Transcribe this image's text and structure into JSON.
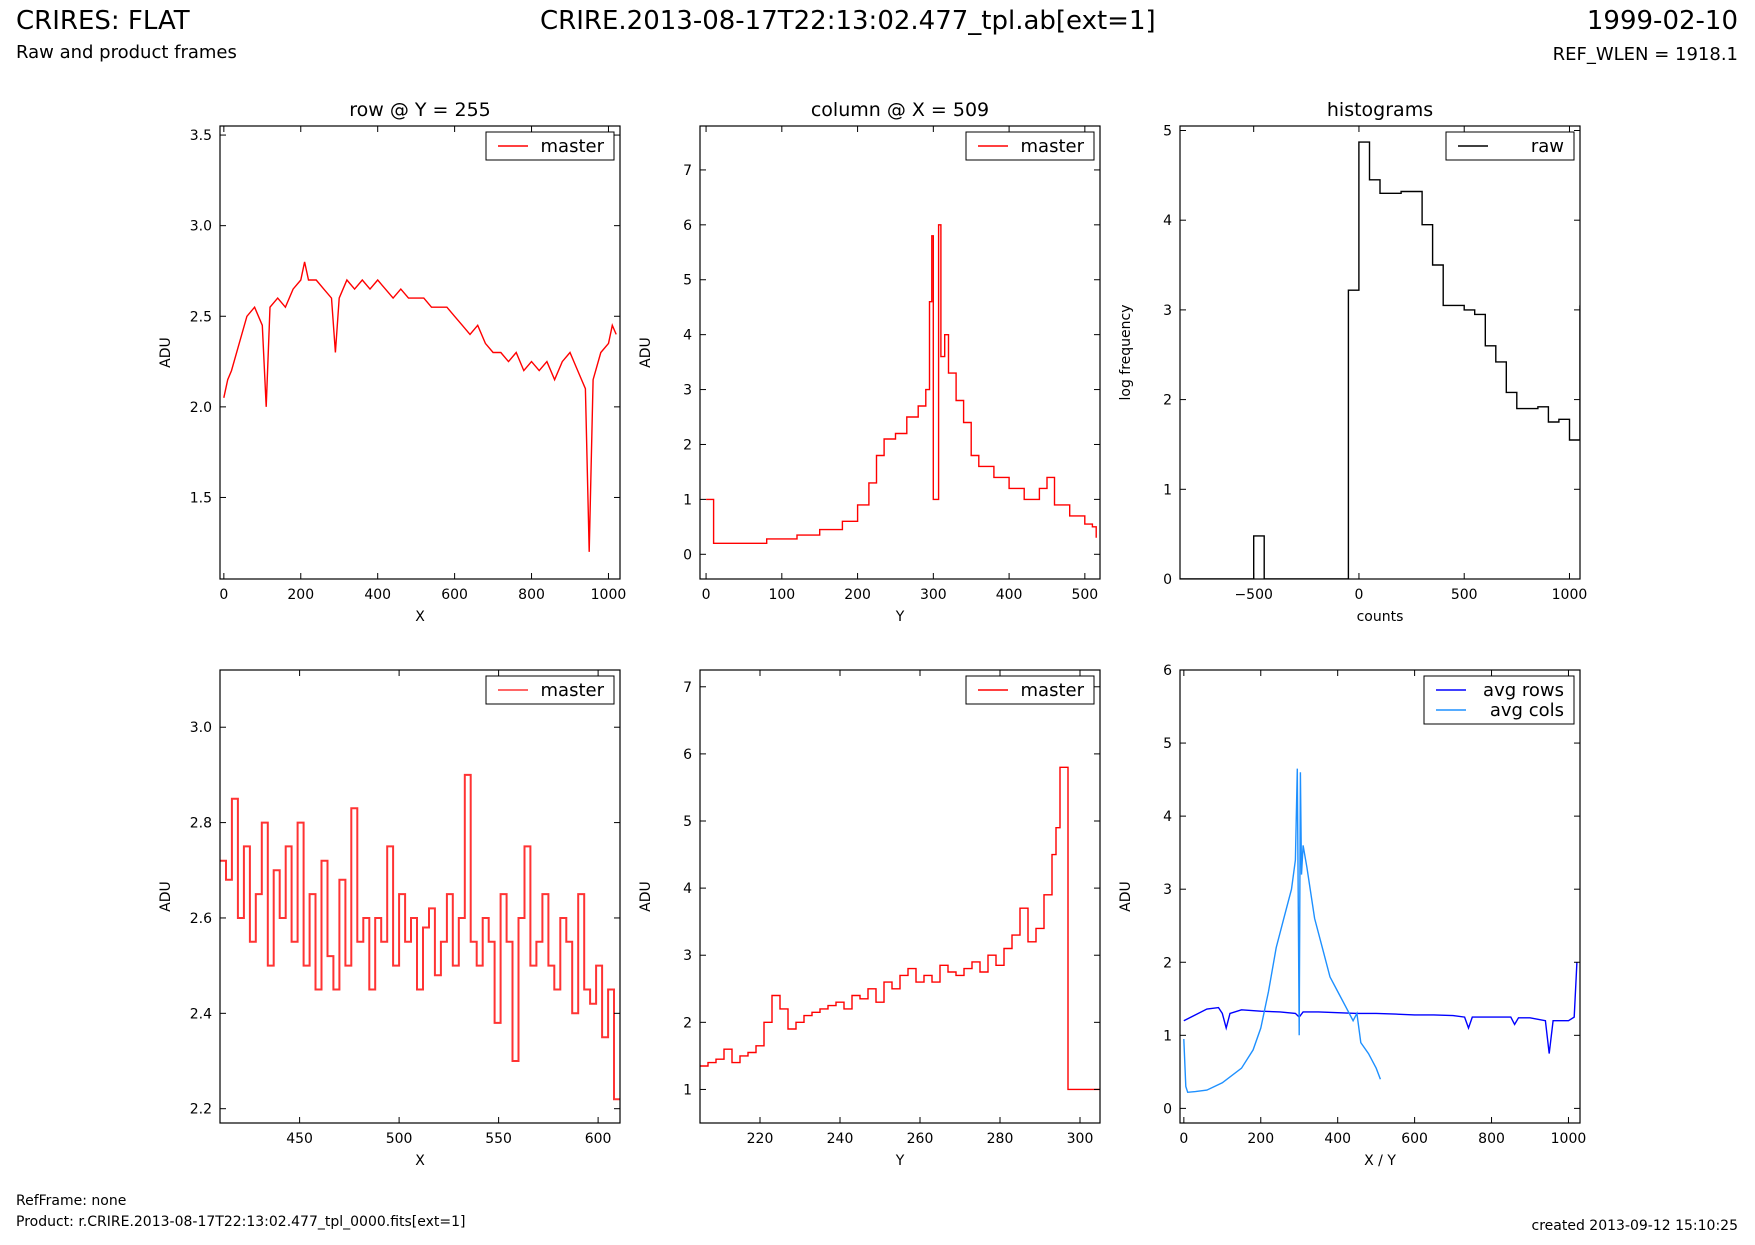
{
  "header": {
    "title": "CRIRES: FLAT",
    "subtitle": "Raw and product frames",
    "center_title": "CRIRE.2013-08-17T22:13:02.477_tpl.ab[ext=1]",
    "date": "1999-02-10",
    "ref_wlen": "REF_WLEN = 1918.1"
  },
  "footer": {
    "refframe": "RefFrame: none",
    "product": "Product: r.CRIRE.2013-08-17T22:13:02.477_tpl_0000.fits[ext=1]",
    "created": "created 2013-09-12 15:10:25"
  },
  "colors": {
    "master": "#ff0000",
    "master_zoom": "#ff3333",
    "raw": "#000000",
    "avg_rows": "#0000ff",
    "avg_cols": "#1e90ff"
  },
  "chart_data": [
    {
      "id": "row",
      "type": "line",
      "title": "row @ Y = 255",
      "xlabel": "X",
      "ylabel": "ADU",
      "xlim": [
        -10,
        1030
      ],
      "ylim": [
        1.05,
        3.55
      ],
      "xticks": [
        0,
        200,
        400,
        600,
        800,
        1000
      ],
      "yticks": [
        1.5,
        2.0,
        2.5,
        3.0,
        3.5
      ],
      "xtick_labels": [
        "0",
        "200",
        "400",
        "600",
        "800",
        "1000"
      ],
      "ytick_labels": [
        "1.5",
        "2.0",
        "2.5",
        "3.0",
        "3.5"
      ],
      "legend": [
        "master"
      ],
      "series": [
        {
          "name": "master",
          "color": "#ff0000",
          "step": false,
          "x": [
            0,
            10,
            20,
            40,
            60,
            80,
            100,
            110,
            120,
            140,
            160,
            180,
            200,
            210,
            220,
            240,
            260,
            280,
            290,
            300,
            320,
            340,
            360,
            380,
            400,
            420,
            440,
            460,
            480,
            500,
            520,
            540,
            560,
            580,
            600,
            620,
            640,
            660,
            680,
            700,
            720,
            740,
            760,
            780,
            800,
            820,
            840,
            860,
            880,
            900,
            920,
            940,
            950,
            960,
            980,
            1000,
            1010,
            1020
          ],
          "y": [
            2.05,
            2.15,
            2.2,
            2.35,
            2.5,
            2.55,
            2.45,
            2.0,
            2.55,
            2.6,
            2.55,
            2.65,
            2.7,
            2.8,
            2.7,
            2.7,
            2.65,
            2.6,
            2.3,
            2.6,
            2.7,
            2.65,
            2.7,
            2.65,
            2.7,
            2.65,
            2.6,
            2.65,
            2.6,
            2.6,
            2.6,
            2.55,
            2.55,
            2.55,
            2.5,
            2.45,
            2.4,
            2.45,
            2.35,
            2.3,
            2.3,
            2.25,
            2.3,
            2.2,
            2.25,
            2.2,
            2.25,
            2.15,
            2.25,
            2.3,
            2.2,
            2.1,
            1.2,
            2.15,
            2.3,
            2.35,
            2.45,
            2.4
          ]
        }
      ]
    },
    {
      "id": "column",
      "type": "line",
      "title": "column @ X = 509",
      "xlabel": "Y",
      "ylabel": "ADU",
      "xlim": [
        -8,
        520
      ],
      "ylim": [
        -0.45,
        7.8
      ],
      "xticks": [
        0,
        100,
        200,
        300,
        400,
        500
      ],
      "yticks": [
        0,
        1,
        2,
        3,
        4,
        5,
        6,
        7
      ],
      "xtick_labels": [
        "0",
        "100",
        "200",
        "300",
        "400",
        "500"
      ],
      "ytick_labels": [
        "0",
        "1",
        "2",
        "3",
        "4",
        "5",
        "6",
        "7"
      ],
      "legend": [
        "master"
      ],
      "series": [
        {
          "name": "master",
          "color": "#ff0000",
          "step": true,
          "x": [
            0,
            8,
            10,
            40,
            80,
            120,
            150,
            180,
            200,
            215,
            225,
            235,
            250,
            265,
            280,
            290,
            295,
            298,
            300,
            305,
            307,
            310,
            315,
            320,
            330,
            340,
            350,
            360,
            380,
            400,
            420,
            440,
            450,
            460,
            480,
            500,
            510,
            515
          ],
          "y": [
            1.0,
            1.0,
            0.2,
            0.2,
            0.28,
            0.35,
            0.45,
            0.6,
            0.9,
            1.3,
            1.8,
            2.1,
            2.2,
            2.5,
            2.7,
            3.0,
            4.6,
            5.8,
            1.0,
            1.0,
            6.0,
            3.6,
            4.0,
            3.3,
            2.8,
            2.4,
            1.8,
            1.6,
            1.4,
            1.2,
            1.0,
            1.2,
            1.4,
            0.9,
            0.7,
            0.55,
            0.5,
            0.3
          ]
        }
      ]
    },
    {
      "id": "hist",
      "type": "line",
      "title": "histograms",
      "xlabel": "counts",
      "ylabel": "log frequency",
      "xlim": [
        -850,
        1050
      ],
      "ylim": [
        0,
        5.05
      ],
      "xticks": [
        -500,
        0,
        500,
        1000
      ],
      "yticks": [
        0,
        1,
        2,
        3,
        4,
        5
      ],
      "xtick_labels": [
        "−500",
        "0",
        "500",
        "1000"
      ],
      "ytick_labels": [
        "0",
        "1",
        "2",
        "3",
        "4",
        "5"
      ],
      "legend": [
        "raw"
      ],
      "series": [
        {
          "name": "raw",
          "color": "#000000",
          "step": true,
          "x": [
            -850,
            -550,
            -500,
            -450,
            -100,
            -50,
            0,
            50,
            100,
            150,
            200,
            250,
            300,
            350,
            400,
            450,
            500,
            550,
            600,
            650,
            700,
            750,
            800,
            850,
            900,
            950,
            1000,
            1050
          ],
          "y": [
            0,
            0,
            0.48,
            0,
            0,
            3.22,
            4.87,
            4.45,
            4.3,
            4.3,
            4.32,
            4.32,
            3.95,
            3.5,
            3.05,
            3.05,
            3.0,
            2.95,
            2.6,
            2.42,
            2.08,
            1.9,
            1.9,
            1.92,
            1.75,
            1.78,
            1.55,
            3.05
          ]
        }
      ]
    },
    {
      "id": "row_zoom",
      "type": "line",
      "title": "",
      "xlabel": "X",
      "ylabel": "ADU",
      "xlim": [
        410,
        611
      ],
      "ylim": [
        2.17,
        3.12
      ],
      "xticks": [
        450,
        500,
        550,
        600
      ],
      "yticks": [
        2.2,
        2.4,
        2.6,
        2.8,
        3.0
      ],
      "xtick_labels": [
        "450",
        "500",
        "550",
        "600"
      ],
      "ytick_labels": [
        "2.2",
        "2.4",
        "2.6",
        "2.8",
        "3.0"
      ],
      "legend": [
        "master"
      ],
      "series": [
        {
          "name": "master",
          "color": "#ff3333",
          "step": true,
          "x": [
            410,
            413,
            416,
            419,
            422,
            425,
            428,
            431,
            434,
            437,
            440,
            443,
            446,
            449,
            452,
            455,
            458,
            461,
            464,
            467,
            470,
            473,
            476,
            479,
            482,
            485,
            488,
            491,
            494,
            497,
            500,
            503,
            506,
            509,
            512,
            515,
            518,
            521,
            524,
            527,
            530,
            533,
            536,
            539,
            542,
            545,
            548,
            551,
            554,
            557,
            560,
            563,
            566,
            569,
            572,
            575,
            578,
            581,
            584,
            587,
            590,
            593,
            596,
            599,
            602,
            605,
            608,
            611
          ],
          "y": [
            2.72,
            2.68,
            2.85,
            2.6,
            2.75,
            2.55,
            2.65,
            2.8,
            2.5,
            2.7,
            2.6,
            2.75,
            2.55,
            2.8,
            2.5,
            2.65,
            2.45,
            2.72,
            2.52,
            2.45,
            2.68,
            2.5,
            2.83,
            2.55,
            2.6,
            2.45,
            2.6,
            2.55,
            2.75,
            2.5,
            2.65,
            2.55,
            2.6,
            2.45,
            2.58,
            2.62,
            2.48,
            2.55,
            2.65,
            2.5,
            2.6,
            2.9,
            2.55,
            2.5,
            2.6,
            2.55,
            2.38,
            2.65,
            2.55,
            2.3,
            2.6,
            2.75,
            2.5,
            2.55,
            2.65,
            2.5,
            2.45,
            2.6,
            2.55,
            2.4,
            2.65,
            2.45,
            2.42,
            2.5,
            2.35,
            2.45,
            2.22,
            2.22
          ]
        }
      ]
    },
    {
      "id": "column_zoom",
      "type": "line",
      "title": "",
      "xlabel": "Y",
      "ylabel": "ADU",
      "xlim": [
        205,
        305
      ],
      "ylim": [
        0.5,
        7.25
      ],
      "xticks": [
        220,
        240,
        260,
        280,
        300
      ],
      "yticks": [
        1,
        2,
        3,
        4,
        5,
        6,
        7
      ],
      "xtick_labels": [
        "220",
        "240",
        "260",
        "280",
        "300"
      ],
      "ytick_labels": [
        "1",
        "2",
        "3",
        "4",
        "5",
        "6",
        "7"
      ],
      "legend": [
        "master"
      ],
      "series": [
        {
          "name": "master",
          "color": "#ff0000",
          "step": true,
          "x": [
            205,
            207,
            209,
            211,
            213,
            215,
            217,
            219,
            221,
            223,
            225,
            227,
            229,
            231,
            233,
            235,
            237,
            239,
            241,
            243,
            245,
            247,
            249,
            251,
            253,
            255,
            257,
            259,
            261,
            263,
            265,
            267,
            269,
            271,
            273,
            275,
            277,
            279,
            281,
            283,
            285,
            287,
            289,
            291,
            293,
            294,
            295,
            296,
            297,
            298,
            300,
            305
          ],
          "y": [
            1.35,
            1.4,
            1.45,
            1.6,
            1.4,
            1.5,
            1.55,
            1.65,
            2.0,
            2.4,
            2.2,
            1.9,
            2.0,
            2.1,
            2.15,
            2.2,
            2.25,
            2.3,
            2.2,
            2.4,
            2.35,
            2.5,
            2.3,
            2.6,
            2.5,
            2.7,
            2.8,
            2.6,
            2.7,
            2.6,
            2.85,
            2.75,
            2.7,
            2.8,
            2.9,
            2.75,
            3.0,
            2.85,
            3.1,
            3.3,
            3.7,
            3.2,
            3.4,
            3.9,
            4.5,
            4.9,
            5.8,
            5.8,
            1.0,
            1.0,
            1.0,
            1.0
          ]
        }
      ]
    },
    {
      "id": "avg",
      "type": "line",
      "title": "",
      "xlabel": "X / Y",
      "ylabel": "ADU",
      "xlim": [
        -10,
        1030
      ],
      "ylim": [
        -0.2,
        6.0
      ],
      "xticks": [
        0,
        200,
        400,
        600,
        800,
        1000
      ],
      "yticks": [
        0,
        1,
        2,
        3,
        4,
        5,
        6
      ],
      "xtick_labels": [
        "0",
        "200",
        "400",
        "600",
        "800",
        "1000"
      ],
      "ytick_labels": [
        "0",
        "1",
        "2",
        "3",
        "4",
        "5",
        "6"
      ],
      "legend": [
        "avg rows",
        "avg cols"
      ],
      "series": [
        {
          "name": "avg rows",
          "color": "#0000ff",
          "step": false,
          "x": [
            0,
            30,
            60,
            90,
            100,
            110,
            120,
            150,
            200,
            250,
            290,
            300,
            310,
            350,
            400,
            450,
            500,
            550,
            600,
            650,
            700,
            730,
            740,
            750,
            760,
            800,
            850,
            860,
            870,
            900,
            940,
            950,
            960,
            1000,
            1015,
            1020,
            1022
          ],
          "y": [
            1.2,
            1.28,
            1.36,
            1.38,
            1.3,
            1.1,
            1.3,
            1.35,
            1.33,
            1.32,
            1.3,
            1.25,
            1.32,
            1.32,
            1.31,
            1.3,
            1.3,
            1.29,
            1.28,
            1.28,
            1.27,
            1.25,
            1.1,
            1.25,
            1.25,
            1.25,
            1.25,
            1.15,
            1.24,
            1.24,
            1.2,
            0.75,
            1.2,
            1.2,
            1.25,
            1.8,
            2.0
          ]
        },
        {
          "name": "avg cols",
          "color": "#1e90ff",
          "step": false,
          "x": [
            0,
            5,
            10,
            30,
            60,
            100,
            150,
            180,
            200,
            220,
            240,
            260,
            280,
            290,
            295,
            300,
            303,
            306,
            310,
            320,
            340,
            360,
            380,
            400,
            420,
            440,
            450,
            460,
            480,
            500,
            511
          ],
          "y": [
            0.95,
            0.3,
            0.22,
            0.23,
            0.25,
            0.35,
            0.55,
            0.8,
            1.1,
            1.6,
            2.2,
            2.6,
            3.0,
            3.4,
            4.65,
            1.0,
            4.6,
            3.2,
            3.6,
            3.3,
            2.6,
            2.2,
            1.8,
            1.6,
            1.4,
            1.2,
            1.3,
            0.9,
            0.75,
            0.55,
            0.4
          ]
        }
      ]
    }
  ]
}
